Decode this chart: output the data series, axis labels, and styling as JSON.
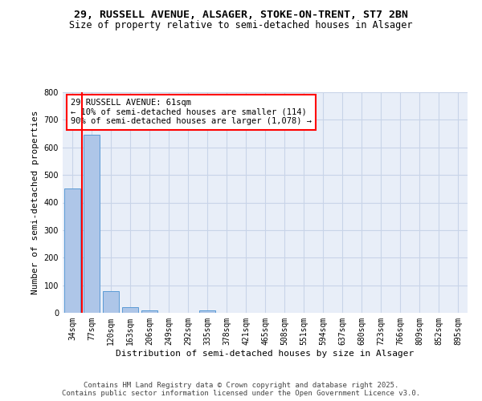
{
  "title_line1": "29, RUSSELL AVENUE, ALSAGER, STOKE-ON-TRENT, ST7 2BN",
  "title_line2": "Size of property relative to semi-detached houses in Alsager",
  "xlabel": "Distribution of semi-detached houses by size in Alsager",
  "ylabel": "Number of semi-detached properties",
  "categories": [
    "34sqm",
    "77sqm",
    "120sqm",
    "163sqm",
    "206sqm",
    "249sqm",
    "292sqm",
    "335sqm",
    "378sqm",
    "421sqm",
    "465sqm",
    "508sqm",
    "551sqm",
    "594sqm",
    "637sqm",
    "680sqm",
    "723sqm",
    "766sqm",
    "809sqm",
    "852sqm",
    "895sqm"
  ],
  "values": [
    450,
    645,
    80,
    20,
    8,
    0,
    0,
    8,
    0,
    0,
    0,
    0,
    0,
    0,
    0,
    0,
    0,
    0,
    0,
    0,
    0
  ],
  "bar_color": "#aec6e8",
  "bar_edge_color": "#5b9bd5",
  "highlight_line_color": "#ff0000",
  "annotation_text": "29 RUSSELL AVENUE: 61sqm\n← 10% of semi-detached houses are smaller (114)\n90% of semi-detached houses are larger (1,078) →",
  "annotation_box_color": "#ff0000",
  "ylim": [
    0,
    800
  ],
  "yticks": [
    0,
    100,
    200,
    300,
    400,
    500,
    600,
    700,
    800
  ],
  "grid_color": "#c8d4e8",
  "background_color": "#e8eef8",
  "footer_line1": "Contains HM Land Registry data © Crown copyright and database right 2025.",
  "footer_line2": "Contains public sector information licensed under the Open Government Licence v3.0.",
  "title_fontsize": 9.5,
  "subtitle_fontsize": 8.5,
  "axis_label_fontsize": 8,
  "tick_fontsize": 7,
  "annotation_fontsize": 7.5,
  "footer_fontsize": 6.5
}
